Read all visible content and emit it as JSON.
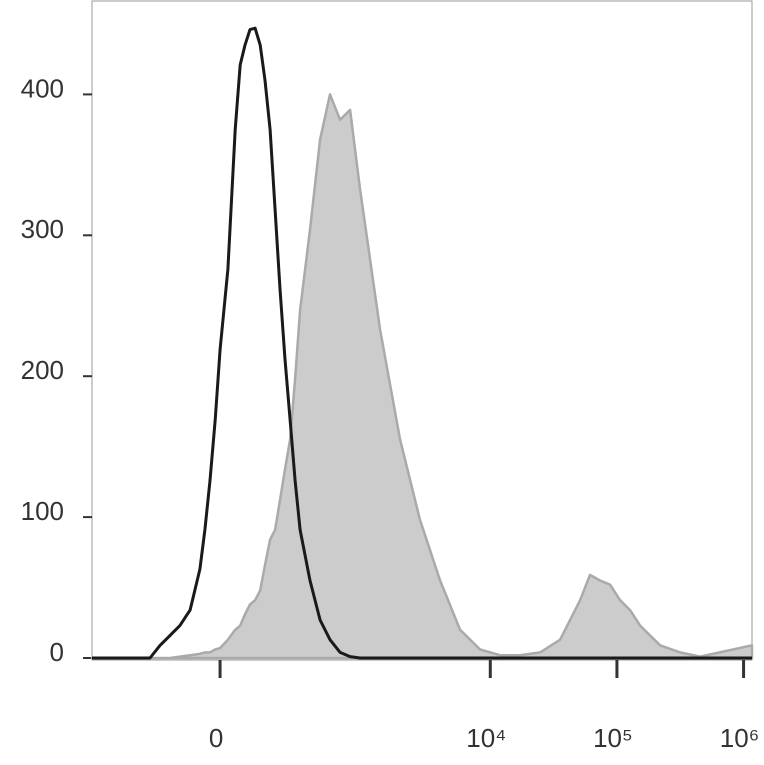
{
  "chart_data": {
    "type": "line",
    "xscale": "asinh",
    "cofactor": 147,
    "x": [
      -747,
      -242,
      -194,
      -153,
      -117,
      -84,
      -55,
      -41,
      -27,
      -13,
      0,
      21,
      41,
      55,
      69,
      84,
      100,
      117,
      134,
      153,
      173,
      194,
      217,
      242,
      269,
      298,
      363,
      441,
      533,
      643,
      775,
      931,
      1344,
      1938,
      2787,
      4012,
      5774,
      8306,
      11951,
      17190,
      24725,
      35570,
      51160,
      61300,
      73570,
      88270,
      105900,
      127000,
      152300,
      182800,
      219100,
      315300,
      453500,
      1165700
    ],
    "series": [
      {
        "color": "#cccccc",
        "edge": "#aaaaaa",
        "fill": true,
        "values": [
          0,
          0,
          0,
          0,
          1,
          2,
          3,
          4,
          4,
          6,
          7,
          13,
          20,
          23,
          31,
          38,
          41,
          48,
          66,
          84,
          91,
          112,
          134,
          155,
          198,
          247,
          304,
          368,
          400,
          382,
          389,
          333,
          233,
          155,
          98,
          55,
          20,
          6,
          2,
          2,
          4,
          13,
          41,
          59,
          55,
          52,
          41,
          34,
          23,
          16,
          9,
          4,
          1,
          9
        ]
      },
      {
        "color": "#1a1a1a",
        "fill": false,
        "values": [
          0,
          0,
          9,
          16,
          23,
          34,
          63,
          91,
          126,
          169,
          219,
          276,
          375,
          421,
          435,
          446,
          447,
          435,
          410,
          375,
          318,
          262,
          212,
          169,
          126,
          91,
          55,
          27,
          13,
          4,
          1,
          0,
          0,
          0,
          0,
          0,
          0,
          0,
          0,
          0,
          0,
          0,
          0,
          0,
          0,
          0,
          0,
          0,
          0,
          0,
          0,
          0,
          0,
          0
        ]
      }
    ],
    "xlim": [
      -747,
      1165700
    ],
    "xticks": [
      0,
      {
        "value": 10000,
        "label": "10⁴"
      },
      {
        "value": 100000,
        "label": "10⁵"
      },
      {
        "value": 1000000,
        "label": "10⁶"
      }
    ],
    "ylim": [
      0,
      467
    ],
    "yticks": [
      0,
      100,
      200,
      300,
      400
    ]
  }
}
